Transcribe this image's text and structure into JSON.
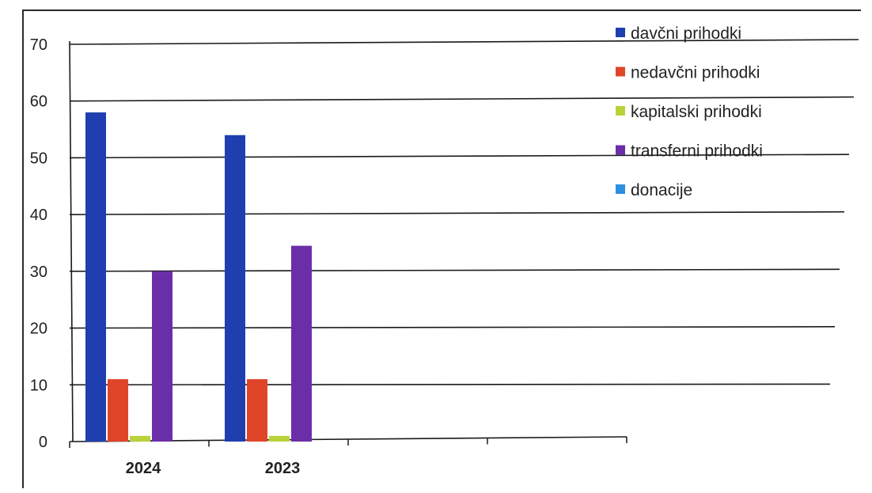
{
  "chart_data": {
    "type": "bar",
    "categories": [
      "2024",
      "2023"
    ],
    "x_slots": 4,
    "series": [
      {
        "name": "davčni prihodki",
        "values": [
          58,
          54
        ],
        "color": "#1f3fb0"
      },
      {
        "name": "nedavčni prihodki",
        "values": [
          11,
          11
        ],
        "color": "#e0452a"
      },
      {
        "name": "kapitalski prihodki",
        "values": [
          1,
          1
        ],
        "color": "#b9d23a"
      },
      {
        "name": "transferni prihodki",
        "values": [
          30,
          34.5
        ],
        "color": "#6a2fa8"
      },
      {
        "name": "donacije",
        "values": [
          0,
          0
        ],
        "color": "#2e8ee0"
      }
    ],
    "yticks": [
      0,
      10,
      20,
      30,
      40,
      50,
      60,
      70
    ],
    "ylim": [
      0,
      70
    ],
    "grid": true,
    "legend_position": "top-right",
    "title": "",
    "xlabel": "",
    "ylabel": ""
  }
}
